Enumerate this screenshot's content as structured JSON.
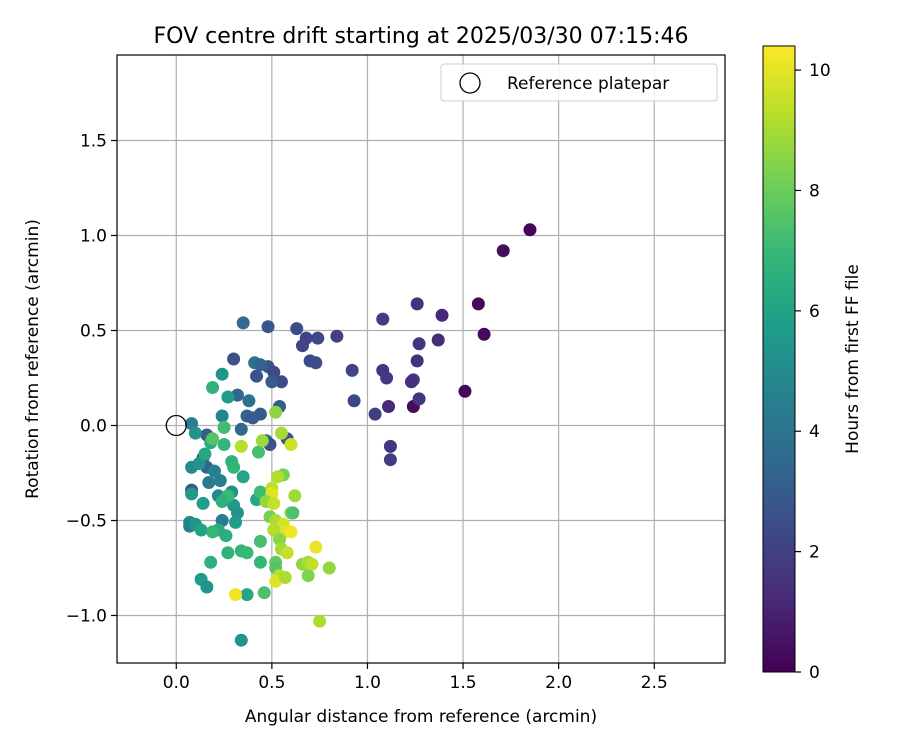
{
  "chart_data": {
    "type": "scatter",
    "title": "FOV centre drift starting at 2025/03/30 07:15:46",
    "xlabel": "Angular distance from reference (arcmin)",
    "ylabel": "Rotation from reference (arcmin)",
    "xlim": [
      -0.31,
      2.87
    ],
    "ylim": [
      -1.25,
      1.95
    ],
    "xticks": [
      0.0,
      0.5,
      1.0,
      1.5,
      2.0,
      2.5
    ],
    "yticks": [
      -1.0,
      -0.5,
      0.0,
      0.5,
      1.0,
      1.5
    ],
    "xtick_labels": [
      "0.0",
      "0.5",
      "1.0",
      "1.5",
      "2.0",
      "2.5"
    ],
    "ytick_labels": [
      "−1.0",
      "−0.5",
      "0.0",
      "0.5",
      "1.0",
      "1.5"
    ],
    "grid": true,
    "legend": {
      "placement": "top-right",
      "label": "Reference platepar"
    },
    "reference_point": {
      "x": 0.0,
      "y": 0.0
    },
    "colorbar": {
      "label": "Hours from first FF file",
      "range": [
        0,
        10.4
      ],
      "ticks": [
        0,
        2,
        4,
        6,
        8,
        10
      ],
      "tick_labels": [
        "0",
        "2",
        "4",
        "6",
        "8",
        "10"
      ],
      "colormap": "viridis",
      "stops": [
        "#440154",
        "#482878",
        "#3e4989",
        "#31688e",
        "#26828e",
        "#1f9e89",
        "#35b779",
        "#6ece58",
        "#b5de2b",
        "#fde725"
      ]
    },
    "points": [
      {
        "x": 1.85,
        "y": 1.03,
        "c": 0.1
      },
      {
        "x": 1.71,
        "y": 0.92,
        "c": 0.4
      },
      {
        "x": 1.58,
        "y": 0.64,
        "c": 0.2
      },
      {
        "x": 1.61,
        "y": 0.48,
        "c": 0.3
      },
      {
        "x": 1.51,
        "y": 0.18,
        "c": 0.2
      },
      {
        "x": 1.24,
        "y": 0.1,
        "c": 0.3
      },
      {
        "x": 1.26,
        "y": 0.64,
        "c": 1.5
      },
      {
        "x": 1.39,
        "y": 0.58,
        "c": 1.2
      },
      {
        "x": 1.37,
        "y": 0.45,
        "c": 1.3
      },
      {
        "x": 1.27,
        "y": 0.43,
        "c": 1.6
      },
      {
        "x": 1.26,
        "y": 0.34,
        "c": 1.5
      },
      {
        "x": 1.24,
        "y": 0.24,
        "c": 1.8
      },
      {
        "x": 1.23,
        "y": 0.23,
        "c": 1.4
      },
      {
        "x": 1.27,
        "y": 0.14,
        "c": 1.7
      },
      {
        "x": 1.08,
        "y": 0.56,
        "c": 1.9
      },
      {
        "x": 1.08,
        "y": 0.29,
        "c": 1.6
      },
      {
        "x": 1.1,
        "y": 0.25,
        "c": 1.8
      },
      {
        "x": 1.11,
        "y": 0.1,
        "c": 1.2
      },
      {
        "x": 1.04,
        "y": 0.06,
        "c": 2.0
      },
      {
        "x": 1.12,
        "y": -0.11,
        "c": 1.7
      },
      {
        "x": 1.12,
        "y": -0.18,
        "c": 1.9
      },
      {
        "x": 0.92,
        "y": 0.29,
        "c": 2.1
      },
      {
        "x": 0.93,
        "y": 0.13,
        "c": 2.2
      },
      {
        "x": 0.84,
        "y": 0.47,
        "c": 2.0
      },
      {
        "x": 0.74,
        "y": 0.46,
        "c": 2.3
      },
      {
        "x": 0.68,
        "y": 0.46,
        "c": 2.1
      },
      {
        "x": 0.63,
        "y": 0.51,
        "c": 2.4
      },
      {
        "x": 0.66,
        "y": 0.42,
        "c": 2.2
      },
      {
        "x": 0.7,
        "y": 0.34,
        "c": 2.3
      },
      {
        "x": 0.73,
        "y": 0.33,
        "c": 2.5
      },
      {
        "x": 0.48,
        "y": 0.52,
        "c": 2.8
      },
      {
        "x": 0.3,
        "y": 0.35,
        "c": 2.6
      },
      {
        "x": 0.48,
        "y": 0.31,
        "c": 2.8
      },
      {
        "x": 0.51,
        "y": 0.28,
        "c": 2.3
      },
      {
        "x": 0.55,
        "y": 0.23,
        "c": 2.4
      },
      {
        "x": 0.5,
        "y": 0.23,
        "c": 3.0
      },
      {
        "x": 0.42,
        "y": 0.26,
        "c": 2.7
      },
      {
        "x": 0.54,
        "y": 0.1,
        "c": 3.1
      },
      {
        "x": 0.44,
        "y": 0.06,
        "c": 2.9
      },
      {
        "x": 0.47,
        "y": -0.08,
        "c": 3.2
      },
      {
        "x": 0.49,
        "y": -0.1,
        "c": 2.6
      },
      {
        "x": 0.58,
        "y": -0.07,
        "c": 2.8
      },
      {
        "x": 0.35,
        "y": 0.54,
        "c": 3.6
      },
      {
        "x": 0.41,
        "y": 0.33,
        "c": 3.9
      },
      {
        "x": 0.44,
        "y": 0.32,
        "c": 3.3
      },
      {
        "x": 0.32,
        "y": 0.16,
        "c": 3.4
      },
      {
        "x": 0.38,
        "y": 0.13,
        "c": 3.8
      },
      {
        "x": 0.37,
        "y": 0.05,
        "c": 3.2
      },
      {
        "x": 0.4,
        "y": 0.04,
        "c": 3.0
      },
      {
        "x": 0.34,
        "y": -0.02,
        "c": 3.5
      },
      {
        "x": 0.16,
        "y": -0.05,
        "c": 3.1
      },
      {
        "x": 0.14,
        "y": -0.17,
        "c": 3.2
      },
      {
        "x": 0.16,
        "y": -0.22,
        "c": 3.3
      },
      {
        "x": 0.08,
        "y": -0.34,
        "c": 2.9
      },
      {
        "x": 0.2,
        "y": -0.24,
        "c": 4.6
      },
      {
        "x": 0.17,
        "y": -0.3,
        "c": 4.3
      },
      {
        "x": 0.08,
        "y": 0.01,
        "c": 4.4
      },
      {
        "x": 0.1,
        "y": -0.04,
        "c": 5.3
      },
      {
        "x": 0.24,
        "y": 0.05,
        "c": 4.8
      },
      {
        "x": 0.24,
        "y": 0.27,
        "c": 5.4
      },
      {
        "x": 0.27,
        "y": 0.15,
        "c": 5.6
      },
      {
        "x": 0.08,
        "y": -0.22,
        "c": 5.0
      },
      {
        "x": 0.12,
        "y": -0.2,
        "c": 5.3
      },
      {
        "x": 0.15,
        "y": -0.15,
        "c": 6.2
      },
      {
        "x": 0.18,
        "y": -0.09,
        "c": 6.4
      },
      {
        "x": 0.08,
        "y": -0.36,
        "c": 5.6
      },
      {
        "x": 0.14,
        "y": -0.41,
        "c": 5.8
      },
      {
        "x": 0.07,
        "y": -0.51,
        "c": 5.0
      },
      {
        "x": 0.07,
        "y": -0.53,
        "c": 4.6
      },
      {
        "x": 0.1,
        "y": -0.52,
        "c": 5.4
      },
      {
        "x": 0.13,
        "y": -0.55,
        "c": 6.0
      },
      {
        "x": 0.24,
        "y": -0.5,
        "c": 4.4
      },
      {
        "x": 0.23,
        "y": -0.29,
        "c": 4.5
      },
      {
        "x": 0.22,
        "y": -0.37,
        "c": 4.9
      },
      {
        "x": 0.29,
        "y": -0.35,
        "c": 5.2
      },
      {
        "x": 0.3,
        "y": -0.42,
        "c": 5.6
      },
      {
        "x": 0.31,
        "y": -0.51,
        "c": 5.8
      },
      {
        "x": 0.32,
        "y": -0.46,
        "c": 5.4
      },
      {
        "x": 0.35,
        "y": -0.27,
        "c": 6.1
      },
      {
        "x": 0.29,
        "y": -0.19,
        "c": 6.6
      },
      {
        "x": 0.3,
        "y": -0.22,
        "c": 6.8
      },
      {
        "x": 0.27,
        "y": -0.37,
        "c": 7.0
      },
      {
        "x": 0.24,
        "y": -0.4,
        "c": 6.6
      },
      {
        "x": 0.22,
        "y": -0.55,
        "c": 6.3
      },
      {
        "x": 0.26,
        "y": -0.58,
        "c": 6.5
      },
      {
        "x": 0.27,
        "y": -0.67,
        "c": 6.7
      },
      {
        "x": 0.19,
        "y": -0.56,
        "c": 6.9
      },
      {
        "x": 0.18,
        "y": -0.72,
        "c": 6.6
      },
      {
        "x": 0.13,
        "y": -0.81,
        "c": 5.7
      },
      {
        "x": 0.16,
        "y": -0.85,
        "c": 5.4
      },
      {
        "x": 0.19,
        "y": 0.2,
        "c": 6.7
      },
      {
        "x": 0.25,
        "y": -0.01,
        "c": 7.2
      },
      {
        "x": 0.19,
        "y": -0.07,
        "c": 7.6
      },
      {
        "x": 0.25,
        "y": -0.1,
        "c": 6.9
      },
      {
        "x": 0.34,
        "y": -0.66,
        "c": 6.8
      },
      {
        "x": 0.37,
        "y": -0.67,
        "c": 7.0
      },
      {
        "x": 0.37,
        "y": -0.89,
        "c": 6.1
      },
      {
        "x": 0.42,
        "y": -0.39,
        "c": 6.2
      },
      {
        "x": 0.44,
        "y": -0.35,
        "c": 7.1
      },
      {
        "x": 0.44,
        "y": -0.61,
        "c": 7.3
      },
      {
        "x": 0.44,
        "y": -0.72,
        "c": 6.8
      },
      {
        "x": 0.46,
        "y": -0.88,
        "c": 7.4
      },
      {
        "x": 0.43,
        "y": -0.14,
        "c": 7.3
      },
      {
        "x": 0.52,
        "y": 0.07,
        "c": 8.6
      },
      {
        "x": 0.55,
        "y": -0.04,
        "c": 9.0
      },
      {
        "x": 0.6,
        "y": -0.1,
        "c": 9.6
      },
      {
        "x": 0.34,
        "y": -0.11,
        "c": 9.3
      },
      {
        "x": 0.45,
        "y": -0.08,
        "c": 8.8
      },
      {
        "x": 0.56,
        "y": -0.26,
        "c": 8.2
      },
      {
        "x": 0.53,
        "y": -0.27,
        "c": 9.2
      },
      {
        "x": 0.5,
        "y": -0.33,
        "c": 9.4
      },
      {
        "x": 0.5,
        "y": -0.36,
        "c": 9.9
      },
      {
        "x": 0.47,
        "y": -0.4,
        "c": 8.7
      },
      {
        "x": 0.51,
        "y": -0.41,
        "c": 9.5
      },
      {
        "x": 0.49,
        "y": -0.48,
        "c": 8.2
      },
      {
        "x": 0.52,
        "y": -0.5,
        "c": 9.1
      },
      {
        "x": 0.6,
        "y": -0.46,
        "c": 8.5
      },
      {
        "x": 0.62,
        "y": -0.37,
        "c": 8.9
      },
      {
        "x": 0.61,
        "y": -0.46,
        "c": 7.4
      },
      {
        "x": 0.56,
        "y": -0.52,
        "c": 9.7
      },
      {
        "x": 0.57,
        "y": -0.56,
        "c": 9.9
      },
      {
        "x": 0.6,
        "y": -0.56,
        "c": 10.2
      },
      {
        "x": 0.51,
        "y": -0.55,
        "c": 9.2
      },
      {
        "x": 0.54,
        "y": -0.6,
        "c": 8.6
      },
      {
        "x": 0.55,
        "y": -0.65,
        "c": 9.0
      },
      {
        "x": 0.58,
        "y": -0.67,
        "c": 9.5
      },
      {
        "x": 0.52,
        "y": -0.72,
        "c": 7.9
      },
      {
        "x": 0.52,
        "y": -0.75,
        "c": 7.6
      },
      {
        "x": 0.54,
        "y": -0.79,
        "c": 9.3
      },
      {
        "x": 0.52,
        "y": -0.82,
        "c": 9.9
      },
      {
        "x": 0.57,
        "y": -0.8,
        "c": 9.1
      },
      {
        "x": 0.66,
        "y": -0.73,
        "c": 8.6
      },
      {
        "x": 0.69,
        "y": -0.72,
        "c": 9.0
      },
      {
        "x": 0.71,
        "y": -0.73,
        "c": 9.4
      },
      {
        "x": 0.69,
        "y": -0.79,
        "c": 8.4
      },
      {
        "x": 0.73,
        "y": -0.64,
        "c": 10.1
      },
      {
        "x": 0.8,
        "y": -0.75,
        "c": 8.7
      },
      {
        "x": 0.75,
        "y": -1.03,
        "c": 9.1
      },
      {
        "x": 0.31,
        "y": -0.89,
        "c": 10.2
      },
      {
        "x": 0.34,
        "y": -1.13,
        "c": 5.4
      }
    ]
  }
}
